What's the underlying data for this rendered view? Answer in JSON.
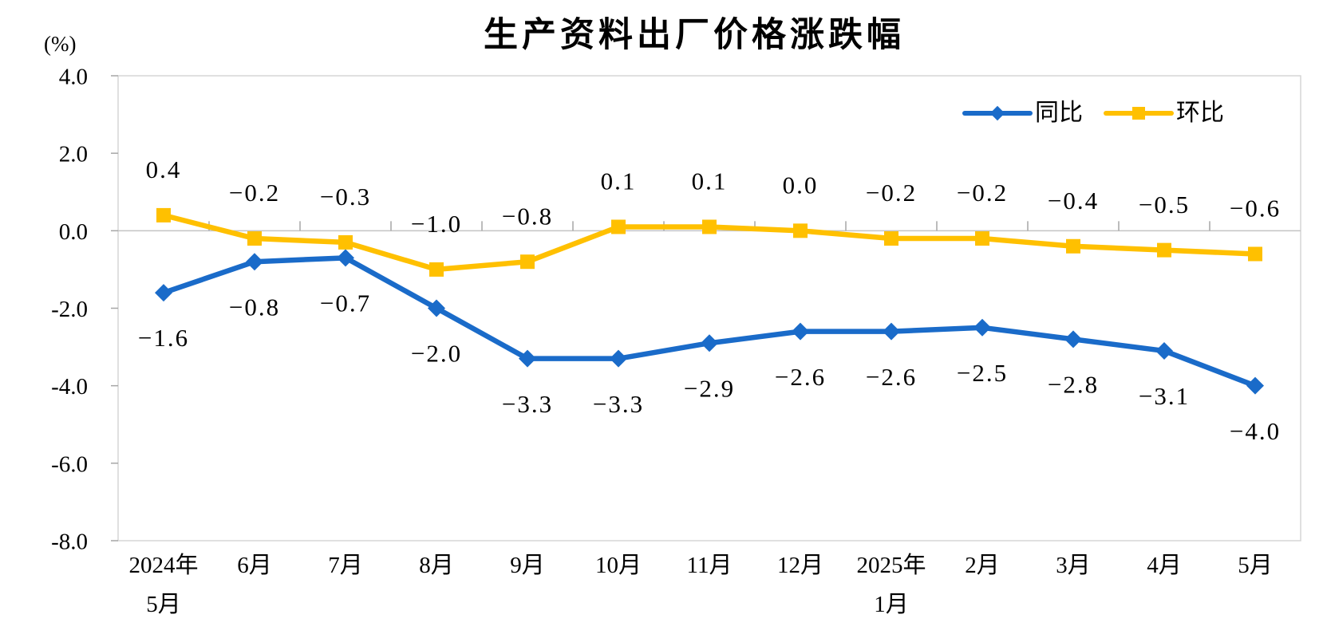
{
  "colors": {
    "series_tongbi": "#1a6bc9",
    "series_huanbi": "#ffc000",
    "plot_border": "#d5d5d5",
    "zero_line": "#c3c3c3",
    "axis_tick": "#a6a6a6",
    "text": "#000000",
    "background": "#ffffff"
  },
  "chart_data": {
    "type": "line",
    "title": "生产资料出厂价格涨跌幅",
    "ylabel": "(%)",
    "ylim": [
      -8.0,
      4.0
    ],
    "ytick_step": 2.0,
    "ytick_labels": [
      "4.0",
      "2.0",
      "0.0",
      "-2.0",
      "-4.0",
      "-6.0",
      "-8.0"
    ],
    "categories": [
      "2024年\n5月",
      "6月",
      "7月",
      "8月",
      "9月",
      "10月",
      "11月",
      "12月",
      "2025年\n1月",
      "2月",
      "3月",
      "4月",
      "5月"
    ],
    "series": [
      {
        "name": "同比",
        "color": "#1a6bc9",
        "marker": "diamond",
        "data_label_position": "below",
        "values": [
          -1.6,
          -0.8,
          -0.7,
          -2.0,
          -3.3,
          -3.3,
          -2.9,
          -2.6,
          -2.6,
          -2.5,
          -2.8,
          -3.1,
          -4.0
        ]
      },
      {
        "name": "环比",
        "color": "#ffc000",
        "marker": "square",
        "data_label_position": "above",
        "values": [
          0.4,
          -0.2,
          -0.3,
          -1.0,
          -0.8,
          0.1,
          0.1,
          0.0,
          -0.2,
          -0.2,
          -0.4,
          -0.5,
          -0.6
        ]
      }
    ],
    "grid": "zero-baseline-only",
    "legend_position": "top-right-inside"
  }
}
